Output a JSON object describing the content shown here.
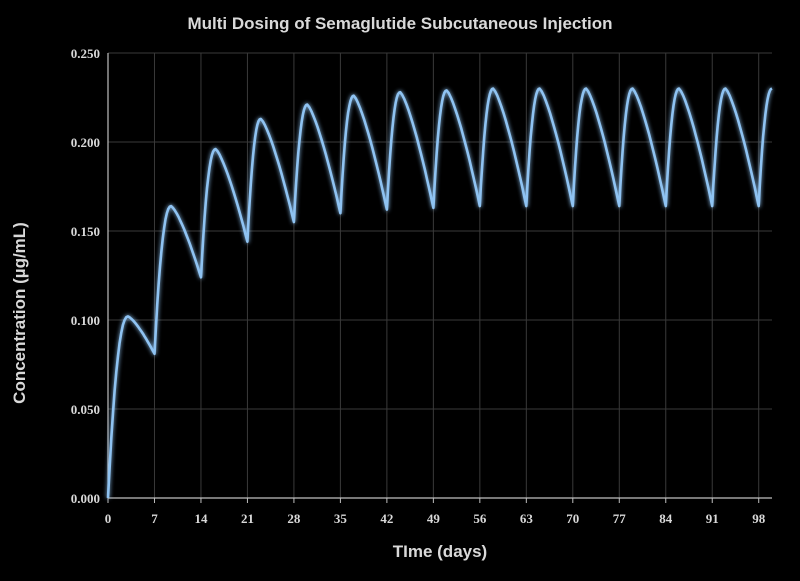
{
  "chart_data": {
    "type": "line",
    "title": "Multi Dosing of Semaglutide Subcutaneous Injection",
    "xlabel": "TIme (days)",
    "ylabel": "Concentration (µg/mL)",
    "xlim": [
      0,
      100
    ],
    "ylim": [
      0,
      0.25
    ],
    "x_ticks": [
      0,
      7,
      14,
      21,
      28,
      35,
      42,
      49,
      56,
      63,
      70,
      77,
      84,
      91,
      98
    ],
    "x_tick_labels": [
      "0",
      "7",
      "14",
      "21",
      "28",
      "35",
      "42",
      "49",
      "56",
      "63",
      "70",
      "77",
      "84",
      "91",
      "98"
    ],
    "y_ticks": [
      0,
      0.05,
      0.1,
      0.15,
      0.2,
      0.25
    ],
    "y_tick_labels": [
      "0.000",
      "0.050",
      "0.100",
      "0.150",
      "0.200",
      "0.250"
    ],
    "grid": true,
    "line_color": "#8fc3f2",
    "series": [
      {
        "peaks": [
          {
            "x": 3,
            "y": 0.102
          },
          {
            "x": 9.5,
            "y": 0.164
          },
          {
            "x": 16.2,
            "y": 0.196
          },
          {
            "x": 23,
            "y": 0.213
          },
          {
            "x": 30,
            "y": 0.221
          },
          {
            "x": 37,
            "y": 0.226
          },
          {
            "x": 44,
            "y": 0.228
          },
          {
            "x": 51,
            "y": 0.229
          },
          {
            "x": 58,
            "y": 0.23
          },
          {
            "x": 65,
            "y": 0.23
          },
          {
            "x": 72,
            "y": 0.23
          },
          {
            "x": 79,
            "y": 0.23
          },
          {
            "x": 86,
            "y": 0.23
          },
          {
            "x": 93,
            "y": 0.23
          },
          {
            "x": 100,
            "y": 0.23
          }
        ],
        "troughs": [
          {
            "x": 0,
            "y": 0.0
          },
          {
            "x": 7,
            "y": 0.081
          },
          {
            "x": 14,
            "y": 0.124
          },
          {
            "x": 21,
            "y": 0.144
          },
          {
            "x": 28,
            "y": 0.155
          },
          {
            "x": 35,
            "y": 0.16
          },
          {
            "x": 42,
            "y": 0.162
          },
          {
            "x": 49,
            "y": 0.163
          },
          {
            "x": 56,
            "y": 0.164
          },
          {
            "x": 63,
            "y": 0.164
          },
          {
            "x": 70,
            "y": 0.164
          },
          {
            "x": 77,
            "y": 0.164
          },
          {
            "x": 84,
            "y": 0.164
          },
          {
            "x": 91,
            "y": 0.164
          },
          {
            "x": 98,
            "y": 0.164
          }
        ]
      }
    ]
  }
}
